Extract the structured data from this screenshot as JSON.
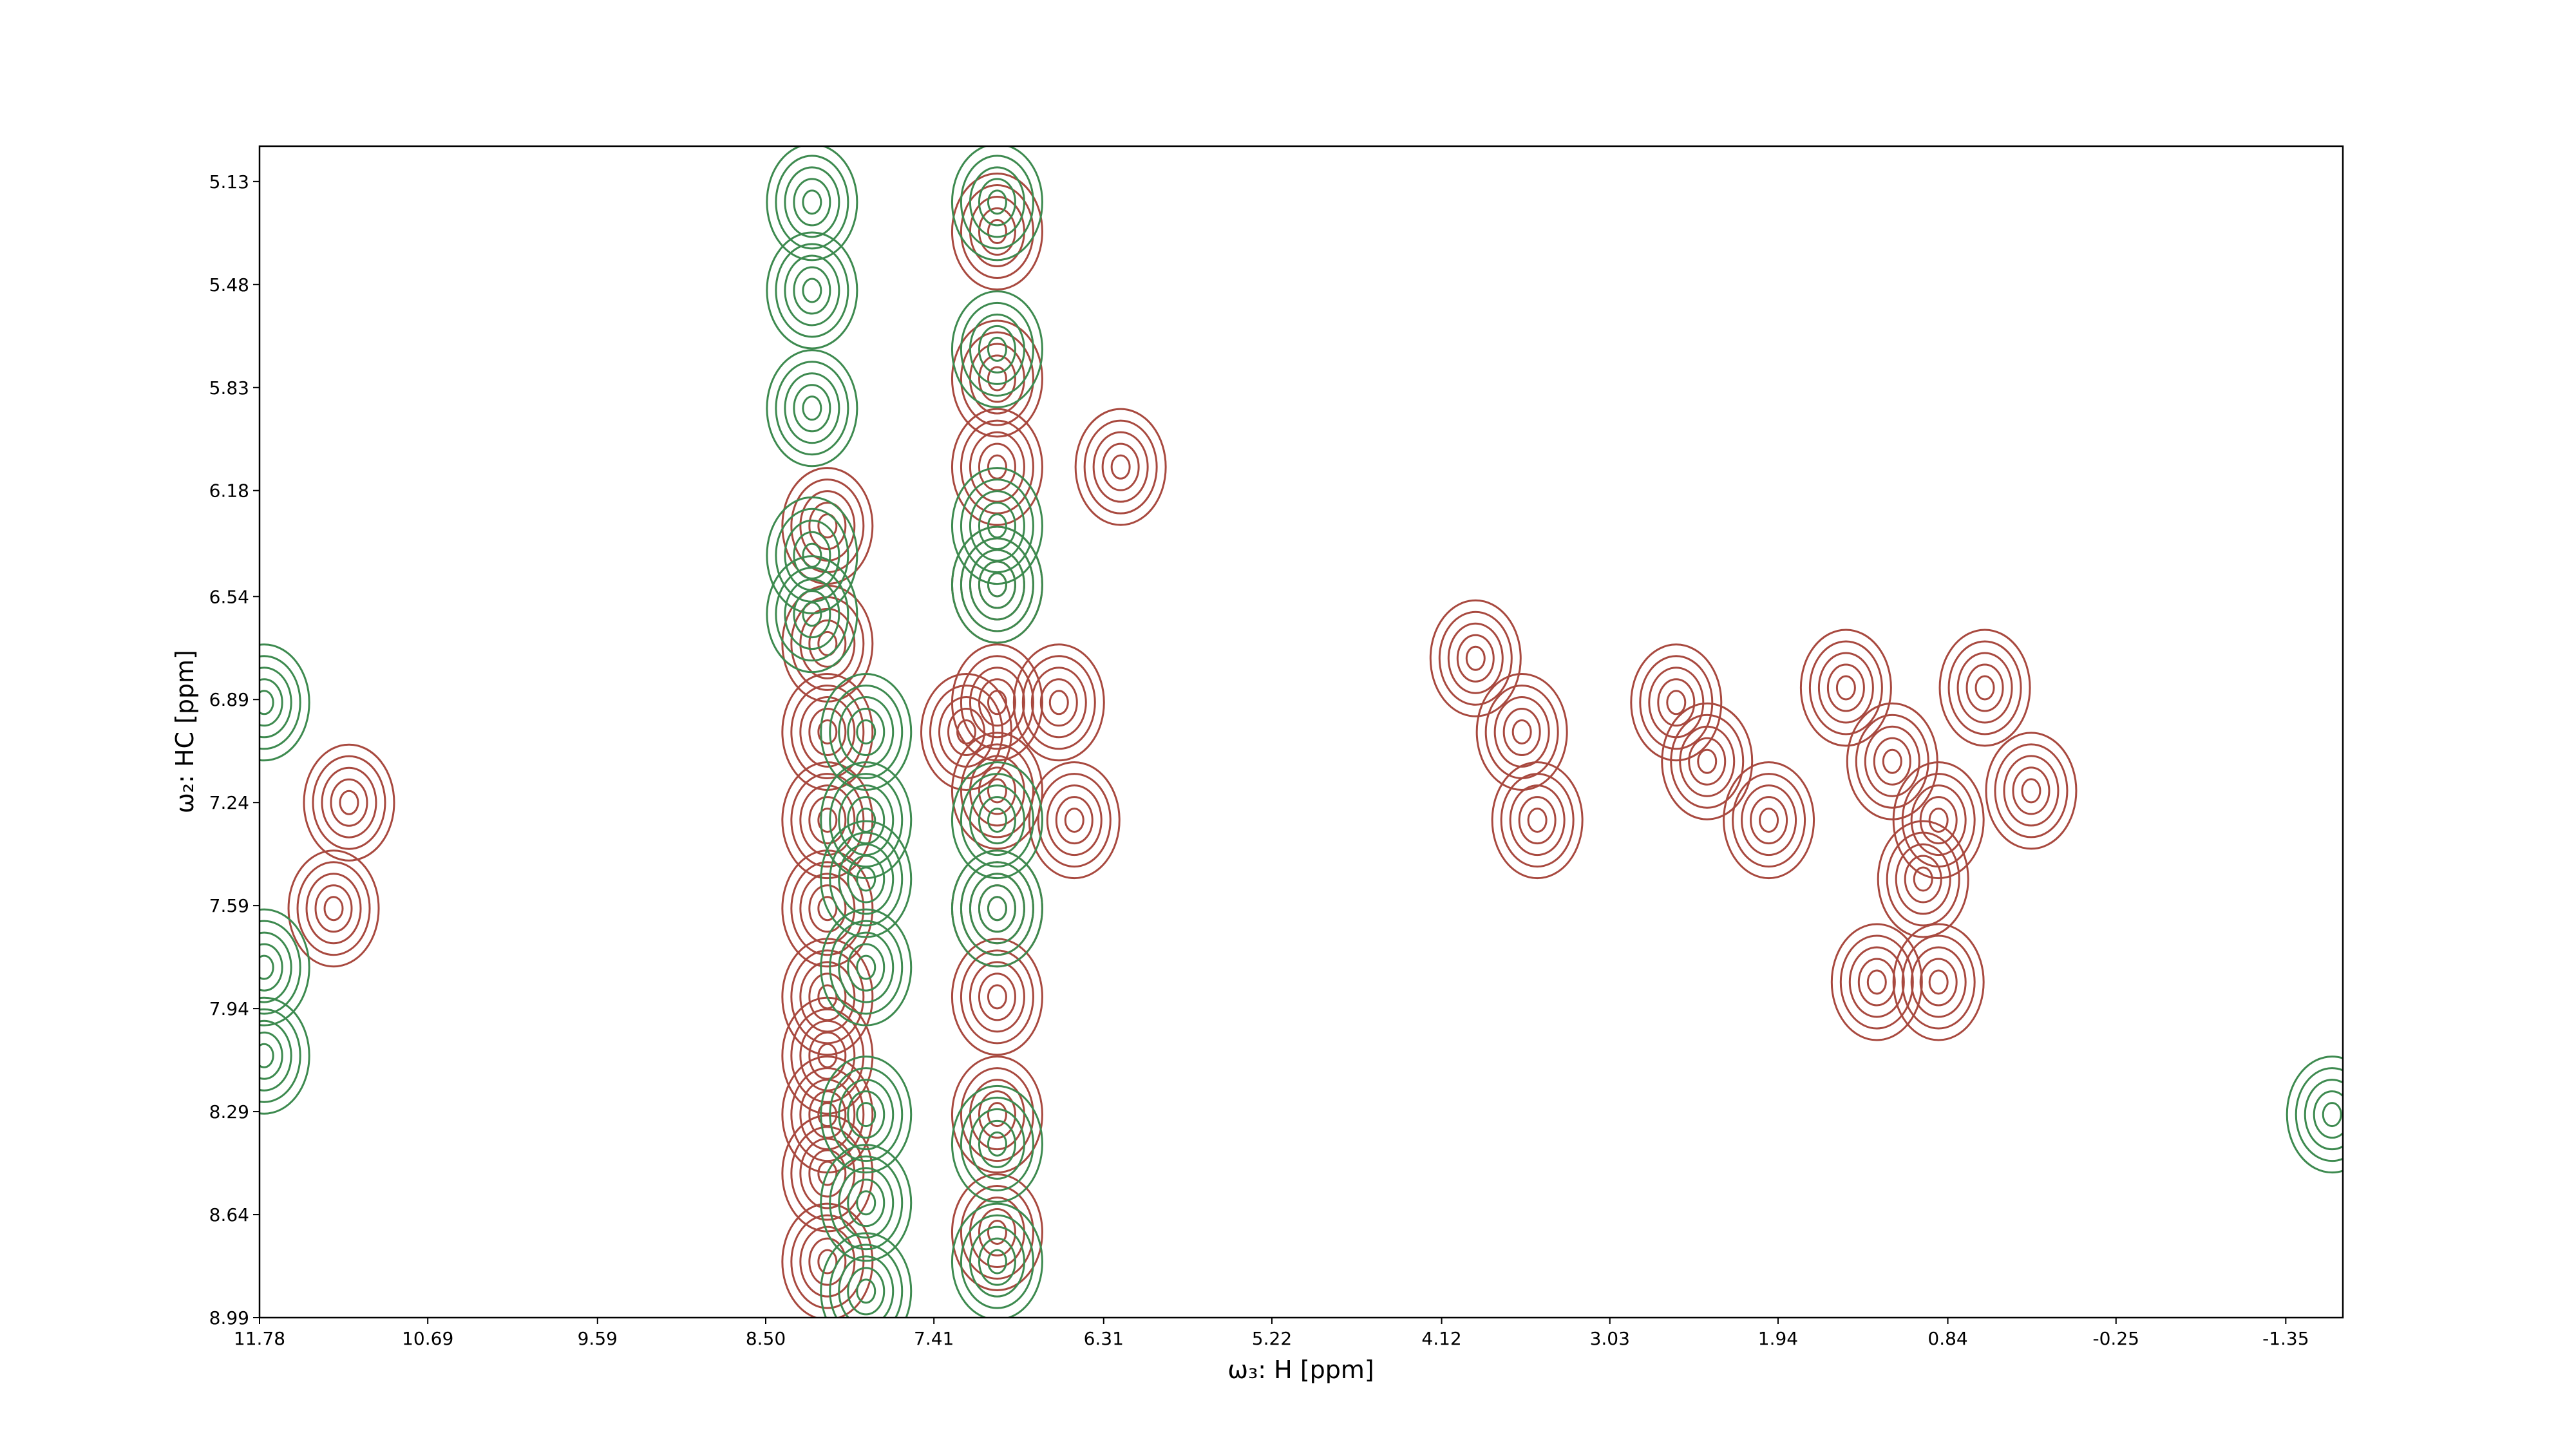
{
  "chart_data": {
    "type": "contour",
    "xlabel": "ω₃: H [ppm]",
    "ylabel": "ω₂: HC [ppm]",
    "xlim": [
      11.78,
      -1.72
    ],
    "ylim": [
      8.99,
      5.01
    ],
    "xticks": [
      11.78,
      10.69,
      9.59,
      {
        "value": 8.5,
        "label": "8.50"
      },
      7.41,
      6.31,
      5.22,
      4.12,
      3.03,
      1.94,
      0.84,
      -0.25,
      -1.35
    ],
    "yticks": [
      5.13,
      5.48,
      5.83,
      6.18,
      6.54,
      6.89,
      7.24,
      7.59,
      7.94,
      8.29,
      8.64,
      8.99
    ],
    "series": [
      {
        "color": "#a8493f",
        "x": [
          8.1,
          8.1,
          8.1,
          8.1,
          8.1,
          8.1,
          8.1,
          8.1,
          8.1,
          8.1,
          7.0,
          7.0,
          7.0,
          7.0,
          7.0,
          7.0,
          7.0,
          7.0,
          7.0,
          7.0,
          7.2,
          6.6,
          6.5,
          6.2,
          3.9,
          3.6,
          3.5,
          2.6,
          2.4,
          2.0,
          1.5,
          1.2,
          0.9,
          0.6,
          0.3,
          1.0,
          0.9,
          1.3,
          11.2,
          11.3
        ],
        "values": [
          6.3,
          6.7,
          7.0,
          7.3,
          7.6,
          7.9,
          8.1,
          8.3,
          8.5,
          8.8,
          5.3,
          5.8,
          6.1,
          6.5,
          6.9,
          7.2,
          7.6,
          7.9,
          8.3,
          8.7,
          7.0,
          6.9,
          7.3,
          6.1,
          6.75,
          7.0,
          7.3,
          6.9,
          7.1,
          7.3,
          6.85,
          7.1,
          7.3,
          6.85,
          7.2,
          7.5,
          7.85,
          7.85,
          7.24,
          7.6
        ]
      },
      {
        "color": "#3d8a4f",
        "x": [
          8.2,
          8.2,
          8.2,
          8.2,
          8.2,
          7.85,
          7.85,
          7.85,
          7.85,
          7.85,
          7.85,
          7.85,
          7.0,
          7.0,
          7.0,
          7.0,
          7.0,
          7.0,
          7.0,
          7.0,
          11.75,
          11.75,
          11.75,
          -1.65
        ],
        "values": [
          5.2,
          5.5,
          5.9,
          6.4,
          6.6,
          7.0,
          7.3,
          7.5,
          7.8,
          8.3,
          8.6,
          8.9,
          5.2,
          5.7,
          6.3,
          6.5,
          7.3,
          7.6,
          8.4,
          8.8,
          6.9,
          7.8,
          8.1,
          8.3
        ]
      }
    ]
  }
}
